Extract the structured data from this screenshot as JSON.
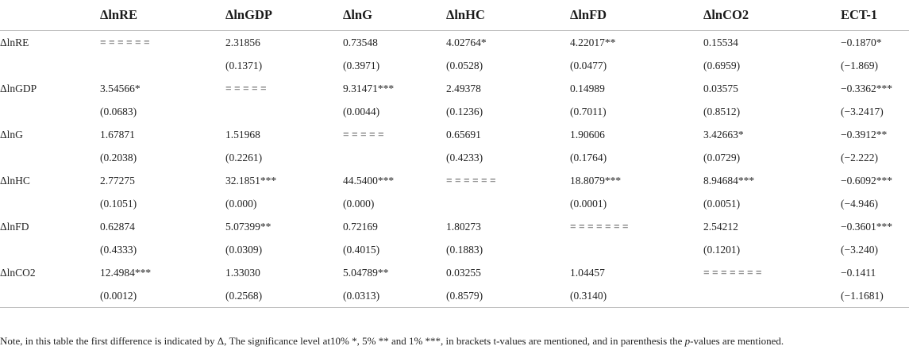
{
  "table": {
    "headers": [
      "",
      "ΔlnRE",
      "ΔlnGDP",
      "ΔlnG",
      "ΔlnHC",
      "ΔlnFD",
      "ΔlnCO2",
      "ECT-1"
    ],
    "rows": [
      {
        "label": "ΔlnRE",
        "values": [
          "= = = = = =",
          "2.31856",
          "0.73548",
          "4.02764*",
          "4.22017**",
          "0.15534",
          "−0.1870*"
        ],
        "sub": [
          "",
          "(0.1371)",
          "(0.3971)",
          "(0.0528)",
          "(0.0477)",
          "(0.6959)",
          "(−1.869)"
        ]
      },
      {
        "label": "ΔlnGDP",
        "values": [
          "3.54566*",
          "= = = = =",
          "9.31471***",
          "2.49378",
          "0.14989",
          "0.03575",
          "−0.3362***"
        ],
        "sub": [
          "(0.0683)",
          "",
          "(0.0044)",
          "(0.1236)",
          "(0.7011)",
          "(0.8512)",
          "(−3.2417)"
        ]
      },
      {
        "label": "ΔlnG",
        "values": [
          "1.67871",
          "1.51968",
          "= = = = =",
          "0.65691",
          "1.90606",
          "3.42663*",
          "−0.3912**"
        ],
        "sub": [
          "(0.2038)",
          "(0.2261)",
          "",
          "(0.4233)",
          "(0.1764)",
          "(0.0729)",
          "(−2.222)"
        ]
      },
      {
        "label": "ΔlnHC",
        "values": [
          "2.77275",
          "32.1851***",
          "44.5400***",
          "= = = = = =",
          "18.8079***",
          "8.94684***",
          "−0.6092***"
        ],
        "sub": [
          "(0.1051)",
          "(0.000)",
          "(0.000)",
          "",
          "(0.0001)",
          "(0.0051)",
          "(−4.946)"
        ]
      },
      {
        "label": "ΔlnFD",
        "values": [
          "0.62874",
          "5.07399**",
          "0.72169",
          "1.80273",
          "= = = = = = =",
          "2.54212",
          "−0.3601***"
        ],
        "sub": [
          "(0.4333)",
          "(0.0309)",
          "(0.4015)",
          "(0.1883)",
          "",
          "(0.1201)",
          "(−3.240)"
        ]
      },
      {
        "label": "ΔlnCO2",
        "values": [
          "12.4984***",
          "1.33030",
          "5.04789**",
          "0.03255",
          "1.04457",
          "= = = = = = =",
          "−0.1411"
        ],
        "sub": [
          "(0.0012)",
          "(0.2568)",
          "(0.0313)",
          "(0.8579)",
          "(0.3140)",
          "",
          "(−1.1681)"
        ]
      }
    ]
  },
  "note": {
    "before_italic": "Note, in this table the first difference is indicated by Δ, The significance level at10% *, 5% ** and 1% ***, in brackets t-values are mentioned, and in parenthesis the ",
    "italic": "p",
    "after_italic": "-values are mentioned."
  }
}
